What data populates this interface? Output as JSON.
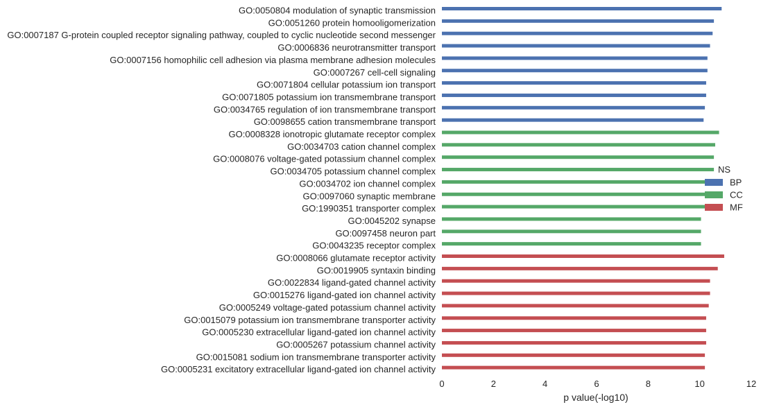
{
  "chart_data": {
    "type": "bar",
    "orientation": "horizontal",
    "xlabel": "p value(-log10)",
    "xlim": [
      0,
      12
    ],
    "xticks": [
      0,
      2,
      4,
      6,
      8,
      10,
      12
    ],
    "grid": false,
    "legend": {
      "title": "NS",
      "placement": "right",
      "entries": [
        {
          "label": "BP",
          "color": "#4c72b0"
        },
        {
          "label": "CC",
          "color": "#55a868"
        },
        {
          "label": "MF",
          "color": "#c44e52"
        }
      ]
    },
    "bars": [
      {
        "label": "GO:0050804 modulation of synaptic transmission",
        "value": 10.85,
        "group": "BP"
      },
      {
        "label": "GO:0051260 protein homooligomerization",
        "value": 10.55,
        "group": "BP"
      },
      {
        "label": "GO:0007187 G-protein coupled receptor signaling pathway, coupled to cyclic nucleotide second messenger",
        "value": 10.5,
        "group": "BP"
      },
      {
        "label": "GO:0006836 neurotransmitter transport",
        "value": 10.4,
        "group": "BP"
      },
      {
        "label": "GO:0007156 homophilic cell adhesion via plasma membrane adhesion molecules",
        "value": 10.3,
        "group": "BP"
      },
      {
        "label": "GO:0007267 cell-cell signaling",
        "value": 10.3,
        "group": "BP"
      },
      {
        "label": "GO:0071804 cellular potassium ion transport",
        "value": 10.25,
        "group": "BP"
      },
      {
        "label": "GO:0071805 potassium ion transmembrane transport",
        "value": 10.25,
        "group": "BP"
      },
      {
        "label": "GO:0034765 regulation of ion transmembrane transport",
        "value": 10.2,
        "group": "BP"
      },
      {
        "label": "GO:0098655 cation transmembrane transport",
        "value": 10.15,
        "group": "BP"
      },
      {
        "label": "GO:0008328 ionotropic glutamate receptor complex",
        "value": 10.75,
        "group": "CC"
      },
      {
        "label": "GO:0034703 cation channel complex",
        "value": 10.6,
        "group": "CC"
      },
      {
        "label": "GO:0008076 voltage-gated potassium channel complex",
        "value": 10.55,
        "group": "CC"
      },
      {
        "label": "GO:0034705 potassium channel complex",
        "value": 10.55,
        "group": "CC"
      },
      {
        "label": "GO:0034702 ion channel complex",
        "value": 10.4,
        "group": "CC"
      },
      {
        "label": "GO:0097060 synaptic membrane",
        "value": 10.35,
        "group": "CC"
      },
      {
        "label": "GO:1990351 transporter complex",
        "value": 10.3,
        "group": "CC"
      },
      {
        "label": "GO:0045202 synapse",
        "value": 10.05,
        "group": "CC"
      },
      {
        "label": "GO:0097458 neuron part",
        "value": 10.05,
        "group": "CC"
      },
      {
        "label": "GO:0043235 receptor complex",
        "value": 10.05,
        "group": "CC"
      },
      {
        "label": "GO:0008066 glutamate receptor activity",
        "value": 10.95,
        "group": "MF"
      },
      {
        "label": "GO:0019905 syntaxin binding",
        "value": 10.7,
        "group": "MF"
      },
      {
        "label": "GO:0022834 ligand-gated channel activity",
        "value": 10.4,
        "group": "MF"
      },
      {
        "label": "GO:0015276 ligand-gated ion channel activity",
        "value": 10.4,
        "group": "MF"
      },
      {
        "label": "GO:0005249 voltage-gated potassium channel activity",
        "value": 10.35,
        "group": "MF"
      },
      {
        "label": "GO:0015079 potassium ion transmembrane transporter activity",
        "value": 10.25,
        "group": "MF"
      },
      {
        "label": "GO:0005230 extracellular ligand-gated ion channel activity",
        "value": 10.25,
        "group": "MF"
      },
      {
        "label": "GO:0005267 potassium channel activity",
        "value": 10.25,
        "group": "MF"
      },
      {
        "label": "GO:0015081 sodium ion transmembrane transporter activity",
        "value": 10.2,
        "group": "MF"
      },
      {
        "label": "GO:0005231 excitatory extracellular ligand-gated ion channel activity",
        "value": 10.2,
        "group": "MF"
      }
    ]
  }
}
